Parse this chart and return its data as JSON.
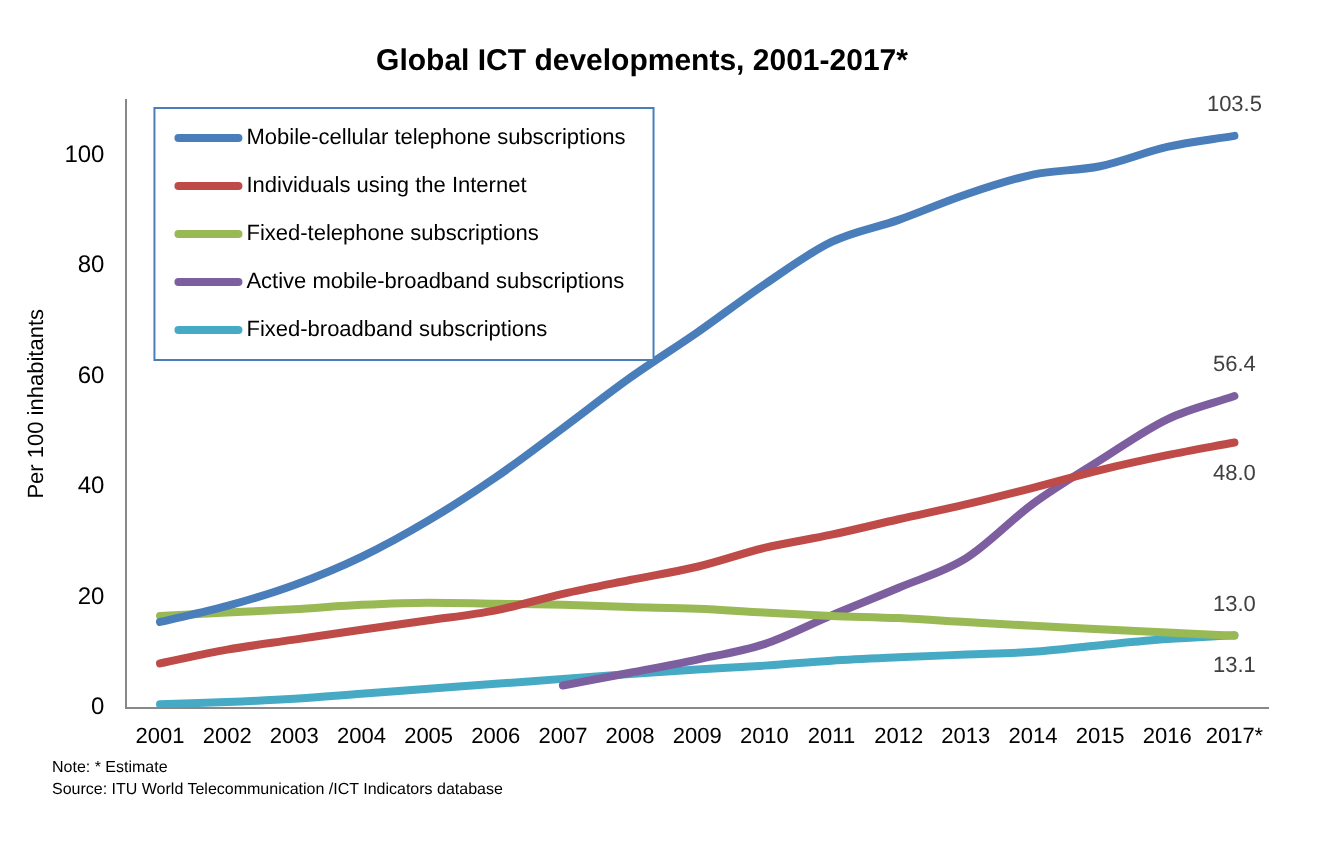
{
  "chart_data": {
    "type": "line",
    "title": "Global ICT developments, 2001-2017*",
    "ylabel": "Per 100 inhabitants",
    "categories": [
      "2001",
      "2002",
      "2003",
      "2004",
      "2005",
      "2006",
      "2007",
      "2008",
      "2009",
      "2010",
      "2011",
      "2012",
      "2013",
      "2014",
      "2015",
      "2016",
      "2017*"
    ],
    "series": [
      {
        "name": "Mobile-cellular telephone subscriptions",
        "color": "#4a7ebb",
        "values": [
          15.5,
          18.4,
          22.2,
          27.3,
          33.9,
          41.7,
          50.6,
          59.7,
          67.9,
          76.6,
          84.3,
          88.3,
          92.9,
          96.5,
          98.0,
          101.5,
          103.5
        ],
        "value_labels": [
          null,
          null,
          null,
          null,
          null,
          null,
          null,
          null,
          null,
          null,
          null,
          null,
          null,
          null,
          null,
          null,
          "103.5"
        ]
      },
      {
        "name": "Individuals using the Internet",
        "color": "#be4b48",
        "values": [
          8.0,
          10.5,
          12.3,
          14.1,
          15.8,
          17.6,
          20.6,
          23.1,
          25.5,
          28.9,
          31.3,
          34.1,
          36.8,
          39.8,
          43.0,
          45.7,
          48.0
        ],
        "value_labels": [
          null,
          null,
          null,
          null,
          null,
          null,
          null,
          null,
          null,
          null,
          null,
          null,
          null,
          null,
          null,
          null,
          "48.0"
        ]
      },
      {
        "name": "Fixed-telephone subscriptions",
        "color": "#98b954",
        "values": [
          16.6,
          17.2,
          17.8,
          18.6,
          19.0,
          18.8,
          18.6,
          18.2,
          17.9,
          17.2,
          16.6,
          16.2,
          15.5,
          14.8,
          14.2,
          13.6,
          13.0
        ],
        "value_labels": [
          null,
          null,
          null,
          null,
          null,
          null,
          null,
          null,
          null,
          null,
          null,
          null,
          null,
          null,
          null,
          null,
          "13.0"
        ]
      },
      {
        "name": "Active mobile-broadband subscriptions",
        "color": "#7d5fa0",
        "values": [
          null,
          null,
          null,
          null,
          null,
          null,
          4.0,
          6.3,
          8.7,
          11.5,
          16.7,
          21.7,
          27.0,
          36.9,
          44.8,
          52.2,
          56.4
        ],
        "value_labels": [
          null,
          null,
          null,
          null,
          null,
          null,
          null,
          null,
          null,
          null,
          null,
          null,
          null,
          null,
          null,
          null,
          "56.4"
        ]
      },
      {
        "name": "Fixed-broadband subscriptions",
        "color": "#46aac5",
        "values": [
          0.6,
          1.0,
          1.6,
          2.5,
          3.4,
          4.3,
          5.2,
          6.1,
          6.9,
          7.6,
          8.5,
          9.1,
          9.6,
          10.1,
          11.3,
          12.4,
          13.1
        ],
        "value_labels": [
          null,
          null,
          null,
          null,
          null,
          null,
          null,
          null,
          null,
          null,
          null,
          null,
          null,
          null,
          null,
          null,
          "13.1"
        ]
      }
    ],
    "ylim": [
      0,
      110
    ],
    "yticks": [
      0,
      20,
      40,
      60,
      80,
      100
    ],
    "grid": false,
    "legend": "top left",
    "marker": "none",
    "line_style": "solid",
    "annotations": [
      "Note: * Estimate",
      "Source:  ITU World Telecommunication /ICT Indicators database"
    ]
  }
}
